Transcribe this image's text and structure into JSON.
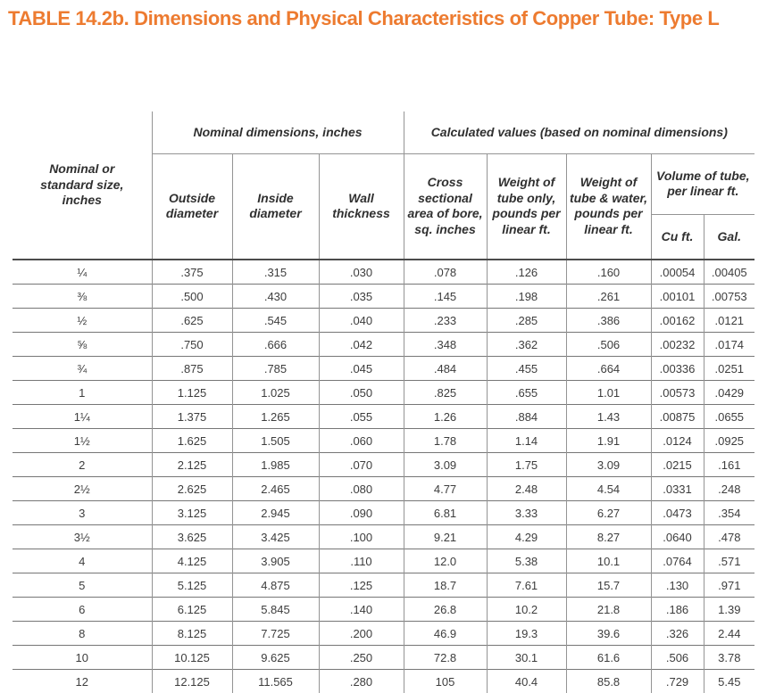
{
  "title": "TABLE 14.2b. Dimensions and Physical Characteristics of Copper Tube: Type L",
  "colors": {
    "title_accent": "#ed7b30",
    "grid_line": "#949494",
    "header_separator": "#4b4b4b",
    "text": "#3a3a3a"
  },
  "table": {
    "corner_header": "Nominal or standard size, inches",
    "group_headers": {
      "nominal": "Nominal dimensions, inches",
      "calculated": "Calculated values (based on nominal dimensions)",
      "volume": "Volume of tube, per linear ft."
    },
    "sub_headers": [
      "Outside diameter",
      "Inside diameter",
      "Wall thickness",
      "Cross sectional area of bore, sq. inches",
      "Weight of tube only, pounds per linear ft.",
      "Weight of tube & water, pounds per linear ft."
    ],
    "volume_sub_headers": [
      "Cu ft.",
      "Gal."
    ],
    "rows": [
      [
        "¼",
        ".375",
        ".315",
        ".030",
        ".078",
        ".126",
        ".160",
        ".00054",
        ".00405"
      ],
      [
        "⅜",
        ".500",
        ".430",
        ".035",
        ".145",
        ".198",
        ".261",
        ".00101",
        ".00753"
      ],
      [
        "½",
        ".625",
        ".545",
        ".040",
        ".233",
        ".285",
        ".386",
        ".00162",
        ".0121"
      ],
      [
        "⅝",
        ".750",
        ".666",
        ".042",
        ".348",
        ".362",
        ".506",
        ".00232",
        ".0174"
      ],
      [
        "¾",
        ".875",
        ".785",
        ".045",
        ".484",
        ".455",
        ".664",
        ".00336",
        ".0251"
      ],
      [
        "1",
        "1.125",
        "1.025",
        ".050",
        ".825",
        ".655",
        "1.01",
        ".00573",
        ".0429"
      ],
      [
        "1¼",
        "1.375",
        "1.265",
        ".055",
        "1.26",
        ".884",
        "1.43",
        ".00875",
        ".0655"
      ],
      [
        "1½",
        "1.625",
        "1.505",
        ".060",
        "1.78",
        "1.14",
        "1.91",
        ".0124",
        ".0925"
      ],
      [
        "2",
        "2.125",
        "1.985",
        ".070",
        "3.09",
        "1.75",
        "3.09",
        ".0215",
        ".161"
      ],
      [
        "2½",
        "2.625",
        "2.465",
        ".080",
        "4.77",
        "2.48",
        "4.54",
        ".0331",
        ".248"
      ],
      [
        "3",
        "3.125",
        "2.945",
        ".090",
        "6.81",
        "3.33",
        "6.27",
        ".0473",
        ".354"
      ],
      [
        "3½",
        "3.625",
        "3.425",
        ".100",
        "9.21",
        "4.29",
        "8.27",
        ".0640",
        ".478"
      ],
      [
        "4",
        "4.125",
        "3.905",
        ".110",
        "12.0",
        "5.38",
        "10.1",
        ".0764",
        ".571"
      ],
      [
        "5",
        "5.125",
        "4.875",
        ".125",
        "18.7",
        "7.61",
        "15.7",
        ".130",
        ".971"
      ],
      [
        "6",
        "6.125",
        "5.845",
        ".140",
        "26.8",
        "10.2",
        "21.8",
        ".186",
        "1.39"
      ],
      [
        "8",
        "8.125",
        "7.725",
        ".200",
        "46.9",
        "19.3",
        "39.6",
        ".326",
        "2.44"
      ],
      [
        "10",
        "10.125",
        "9.625",
        ".250",
        "72.8",
        "30.1",
        "61.6",
        ".506",
        "3.78"
      ],
      [
        "12",
        "12.125",
        "11.565",
        ".280",
        "105",
        "40.4",
        "85.8",
        ".729",
        "5.45"
      ]
    ]
  }
}
